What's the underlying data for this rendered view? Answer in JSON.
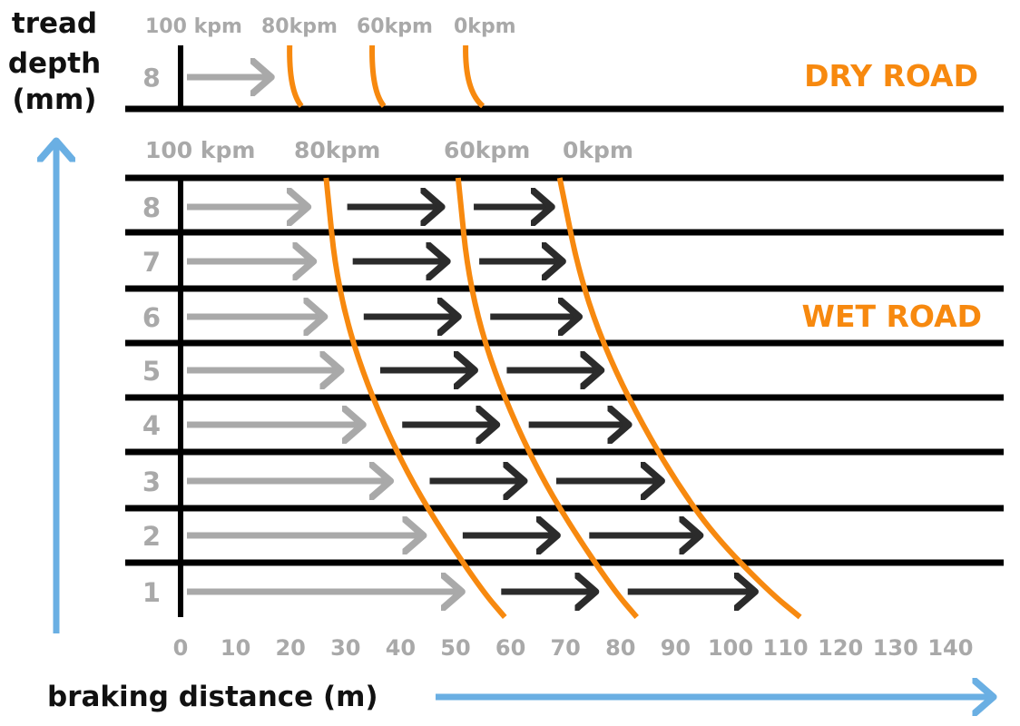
{
  "chart_data": {
    "type": "diagram",
    "ylabel": [
      "tread",
      "depth",
      "(mm)"
    ],
    "xlabel": "braking distance (m)",
    "x_ticks": [
      "0",
      "10",
      "20",
      "30",
      "40",
      "50",
      "60",
      "70",
      "80",
      "90",
      "100",
      "110",
      "120",
      "130",
      "140"
    ],
    "xlim": [
      0,
      140
    ],
    "colors": {
      "curve": "#f7890f",
      "first_phase_arrow": "#a9a9a9",
      "later_phase_arrow": "#2b2b2b",
      "axis_arrow": "#6aafe3"
    },
    "dry_road": {
      "title": "DRY ROAD",
      "speed_labels": [
        "100 kpm",
        "80kpm",
        "60kpm",
        "0kpm"
      ],
      "tread_depth": "8",
      "distance_at_80kpm": 20,
      "distance_at_60kpm": 35,
      "distance_at_0kpm": 52
    },
    "wet_road": {
      "title": "WET ROAD",
      "speed_labels": [
        "100 kpm",
        "80kpm",
        "60kpm",
        "0kpm"
      ],
      "tread_depths": [
        "8",
        "7",
        "6",
        "5",
        "4",
        "3",
        "2",
        "1"
      ],
      "distance_at_80kpm": [
        27,
        28,
        30,
        33,
        37,
        42,
        48,
        55
      ],
      "distance_at_60kpm": [
        51,
        52,
        54,
        57,
        61,
        66,
        72,
        79
      ],
      "distance_at_0kpm": [
        70,
        72,
        75,
        79,
        84,
        90,
        97,
        107
      ]
    }
  }
}
